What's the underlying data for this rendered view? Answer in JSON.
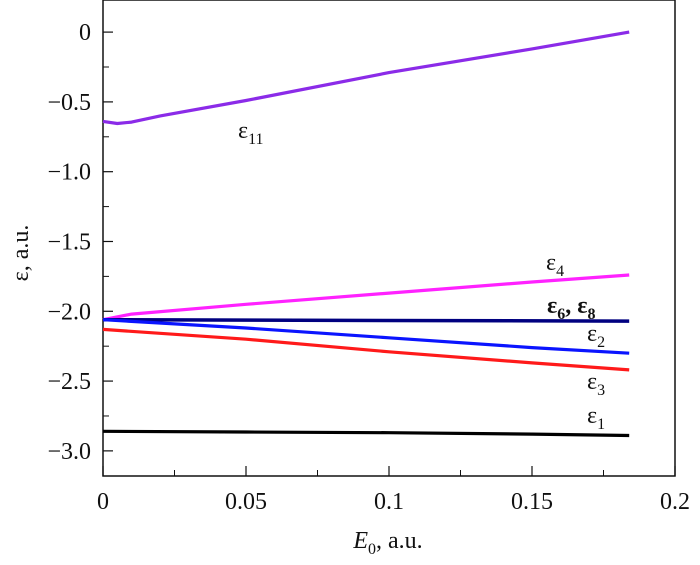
{
  "chart_data": {
    "type": "line",
    "title": "",
    "xlabel": "E",
    "xlabel_sub": "0",
    "xlabel_suffix": ", a.u.",
    "ylabel": "ε, a.u.",
    "xlim": [
      0,
      0.2
    ],
    "ylim": [
      -3.18,
      0.23
    ],
    "xticks": [
      0,
      0.05,
      0.1,
      0.15,
      0.2
    ],
    "xtick_labels": [
      "0",
      "0.05",
      "0.1",
      "0.15",
      "0.2"
    ],
    "yticks": [
      0,
      -0.5,
      -1.0,
      -1.5,
      -2.0,
      -2.5,
      -3.0
    ],
    "ytick_labels": [
      "0",
      "−0.5",
      "−1.0",
      "−1.5",
      "−2.0",
      "−2.5",
      "−3.0"
    ],
    "grid": false,
    "legend": "none (inline labels)",
    "series": [
      {
        "name": "ε11",
        "label_base": "ε",
        "label_sub": "11",
        "color": "#8b2be8",
        "bold": false,
        "x": [
          0,
          0.005,
          0.01,
          0.02,
          0.05,
          0.1,
          0.15,
          0.184
        ],
        "y": [
          -0.64,
          -0.655,
          -0.645,
          -0.6,
          -0.49,
          -0.29,
          -0.12,
          0.0
        ]
      },
      {
        "name": "ε4",
        "label_base": "ε",
        "label_sub": "4",
        "color": "#ff22ff",
        "bold": false,
        "x": [
          0,
          0.01,
          0.05,
          0.1,
          0.15,
          0.184
        ],
        "y": [
          -2.06,
          -2.02,
          -1.95,
          -1.87,
          -1.79,
          -1.74
        ]
      },
      {
        "name": "ε6, ε8",
        "label_base": "ε",
        "label_sub": "6",
        "label_base2": ", ε",
        "label_sub2": "8",
        "color": "#000080",
        "bold": true,
        "x": [
          0,
          0.184
        ],
        "y": [
          -2.06,
          -2.07
        ]
      },
      {
        "name": "ε2",
        "label_base": "ε",
        "label_sub": "2",
        "color": "#0a14ff",
        "bold": false,
        "x": [
          0,
          0.05,
          0.1,
          0.15,
          0.184
        ],
        "y": [
          -2.06,
          -2.12,
          -2.19,
          -2.26,
          -2.3
        ]
      },
      {
        "name": "ε3",
        "label_base": "ε",
        "label_sub": "3",
        "color": "#ff1a1a",
        "bold": false,
        "x": [
          0,
          0.05,
          0.1,
          0.15,
          0.184
        ],
        "y": [
          -2.13,
          -2.2,
          -2.29,
          -2.37,
          -2.42
        ]
      },
      {
        "name": "ε1",
        "label_base": "ε",
        "label_sub": "1",
        "color": "#000000",
        "bold": false,
        "x": [
          0,
          0.05,
          0.1,
          0.15,
          0.184
        ],
        "y": [
          -2.86,
          -2.865,
          -2.87,
          -2.88,
          -2.89
        ]
      }
    ]
  }
}
